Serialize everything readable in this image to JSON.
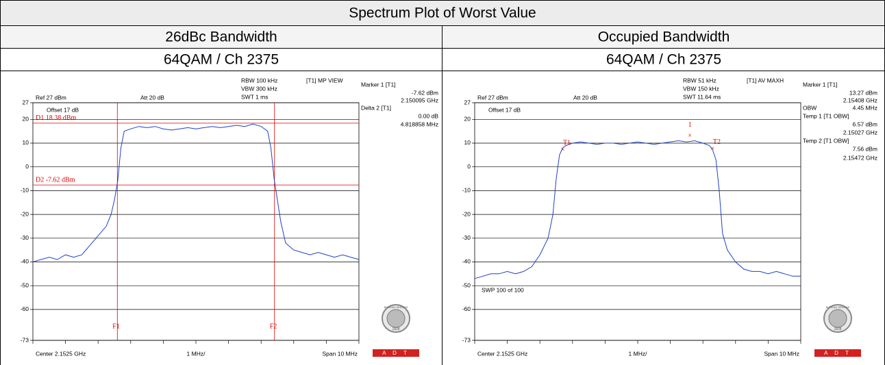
{
  "table": {
    "title": "Spectrum Plot of Worst Value",
    "columns": [
      "26dBc Bandwidth",
      "Occupied Bandwidth"
    ],
    "modes": [
      "64QAM / Ch 2375",
      "64QAM / Ch 2375"
    ]
  },
  "logo": {
    "name": "BUREAU VERITAS",
    "year": "1828",
    "brand": "A D T"
  },
  "plots": [
    {
      "type": "line",
      "annotations": [
        "RBW 100 kHz",
        "VBW 300 kHz",
        "SWT 1 ms",
        "[T1] MP VIEW",
        "Marker 1 [T1]",
        "-7.62 dBm",
        "2.150095 GHz",
        "Delta 2 [T1]",
        "0.00 dB",
        "4.818858 MHz",
        "Ref 27 dBm",
        "Att 20 dB",
        "Offset 17 dB",
        "Center 2.1525 GHz",
        "1 MHz/",
        "Span 10 MHz"
      ],
      "ylim": [
        -73,
        27
      ],
      "yticks": [
        27,
        20,
        10,
        0,
        -10,
        -20,
        -30,
        -40,
        -50,
        -60,
        -73
      ],
      "xlim": [
        -5,
        5
      ],
      "display_lines": [
        {
          "label": "D1 18.38 dBm",
          "value": 18.38
        },
        {
          "label": "D2 -7.62 dBm",
          "value": -7.62
        }
      ],
      "freq_lines": [
        {
          "label": "F1",
          "value": -2.41
        },
        {
          "label": "F2",
          "value": 2.41
        }
      ],
      "x": [
        -5,
        -4.75,
        -4.5,
        -4.25,
        -4,
        -3.75,
        -3.5,
        -3.25,
        -3,
        -2.75,
        -2.6,
        -2.5,
        -2.4,
        -2.3,
        -2.2,
        -2,
        -1.75,
        -1.5,
        -1.25,
        -1,
        -0.75,
        -0.5,
        -0.25,
        0,
        0.25,
        0.5,
        0.75,
        1,
        1.25,
        1.5,
        1.75,
        2,
        2.2,
        2.3,
        2.4,
        2.5,
        2.6,
        2.75,
        3,
        3.25,
        3.5,
        3.75,
        4,
        4.25,
        4.5,
        4.75,
        5
      ],
      "series": [
        {
          "color": "#1f3fc8",
          "values": [
            -40,
            -39,
            -38,
            -39,
            -37,
            -38,
            -37,
            -33,
            -29,
            -25,
            -20,
            -14,
            -6,
            8,
            15,
            16,
            17,
            16.5,
            17,
            16,
            15.5,
            16,
            16.5,
            16,
            16.5,
            17,
            16.5,
            17,
            17.5,
            17,
            18,
            17,
            15,
            8,
            -5,
            -14,
            -23,
            -32,
            -35,
            -36,
            -37,
            -36,
            -37,
            -38,
            -37,
            -38,
            -39
          ]
        }
      ]
    },
    {
      "type": "line",
      "annotations": [
        "RBW 51 kHz",
        "VBW 150 kHz",
        "SWT 11.64 ms",
        "[T1] AV MAXH",
        "Marker 1 [T1]",
        "13.27 dBm",
        "2.15408 GHz",
        "OBW",
        "4.45 MHz",
        "Temp 1 [T1 OBW]",
        "6.57 dBm",
        "2.15027 GHz",
        "Temp 2 [T1 OBW]",
        "7.56 dBm",
        "2.15472 GHz",
        "Ref 27 dBm",
        "Att 20 dB",
        "Offset 17 dB",
        "SWP 100 of 100",
        "Center 2.1525 GHz",
        "1 MHz/",
        "Span 10 MHz"
      ],
      "ylim": [
        -73,
        27
      ],
      "yticks": [
        27,
        20,
        10,
        0,
        -10,
        -20,
        -30,
        -40,
        -50,
        -60,
        -73
      ],
      "xlim": [
        -5,
        5
      ],
      "markers": [
        "T1",
        "T2",
        "1"
      ],
      "x": [
        -5,
        -4.75,
        -4.5,
        -4.25,
        -4,
        -3.75,
        -3.5,
        -3.25,
        -3,
        -2.75,
        -2.6,
        -2.5,
        -2.4,
        -2.3,
        -2.2,
        -2,
        -1.75,
        -1.5,
        -1.25,
        -1,
        -0.75,
        -0.5,
        -0.25,
        0,
        0.25,
        0.5,
        0.75,
        1,
        1.25,
        1.5,
        1.75,
        2,
        2.2,
        2.3,
        2.4,
        2.5,
        2.6,
        2.75,
        3,
        3.25,
        3.5,
        3.75,
        4,
        4.25,
        4.5,
        4.75,
        5
      ],
      "series": [
        {
          "color": "#1f3fc8",
          "values": [
            -47,
            -46,
            -45,
            -45,
            -44,
            -45,
            -44,
            -42,
            -37,
            -30,
            -20,
            -5,
            5,
            8,
            9,
            10,
            10.5,
            10,
            9.5,
            10,
            10,
            9.5,
            10,
            10.5,
            10,
            9.5,
            10,
            10.5,
            11,
            10.5,
            11,
            10,
            9,
            7,
            3,
            -10,
            -28,
            -35,
            -40,
            -43,
            -44,
            -44,
            -45,
            -44,
            -45,
            -46,
            -46
          ]
        }
      ]
    }
  ]
}
